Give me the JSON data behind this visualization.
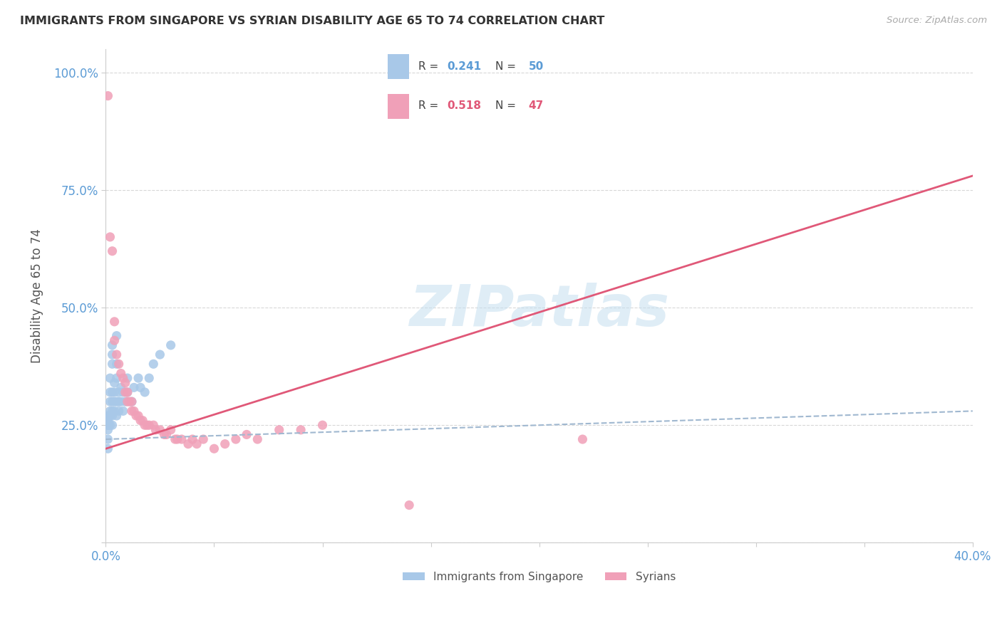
{
  "title": "IMMIGRANTS FROM SINGAPORE VS SYRIAN DISABILITY AGE 65 TO 74 CORRELATION CHART",
  "source": "Source: ZipAtlas.com",
  "ylabel": "Disability Age 65 to 74",
  "xlim": [
    0.0,
    0.4
  ],
  "ylim": [
    0.0,
    1.05
  ],
  "yticks": [
    0.0,
    0.25,
    0.5,
    0.75,
    1.0
  ],
  "ytick_labels": [
    "",
    "25.0%",
    "50.0%",
    "75.0%",
    "100.0%"
  ],
  "xticks": [
    0.0,
    0.05,
    0.1,
    0.15,
    0.2,
    0.25,
    0.3,
    0.35,
    0.4
  ],
  "xtick_labels": [
    "0.0%",
    "",
    "",
    "",
    "",
    "",
    "",
    "",
    "40.0%"
  ],
  "watermark": "ZIPatlas",
  "singapore_color": "#a8c8e8",
  "syrian_color": "#f0a0b8",
  "background_color": "#ffffff",
  "grid_color": "#d8d8d8",
  "axis_color": "#cccccc",
  "title_color": "#333333",
  "source_color": "#aaaaaa",
  "label_color": "#555555",
  "tick_color": "#5b9bd5",
  "legend_r_color_sg": "#5b9bd5",
  "legend_r_color_sy": "#e05878",
  "singapore_line_color": "#a0b8d0",
  "syrian_line_color": "#e05878",
  "sg_R": "0.241",
  "sg_N": "50",
  "sy_R": "0.518",
  "sy_N": "47",
  "singapore_scatter": [
    [
      0.001,
      0.2
    ],
    [
      0.001,
      0.22
    ],
    [
      0.001,
      0.24
    ],
    [
      0.001,
      0.25
    ],
    [
      0.001,
      0.25
    ],
    [
      0.001,
      0.26
    ],
    [
      0.001,
      0.26
    ],
    [
      0.001,
      0.27
    ],
    [
      0.002,
      0.25
    ],
    [
      0.002,
      0.27
    ],
    [
      0.002,
      0.28
    ],
    [
      0.002,
      0.3
    ],
    [
      0.002,
      0.32
    ],
    [
      0.002,
      0.35
    ],
    [
      0.003,
      0.25
    ],
    [
      0.003,
      0.27
    ],
    [
      0.003,
      0.28
    ],
    [
      0.003,
      0.3
    ],
    [
      0.003,
      0.32
    ],
    [
      0.003,
      0.38
    ],
    [
      0.003,
      0.4
    ],
    [
      0.003,
      0.42
    ],
    [
      0.004,
      0.28
    ],
    [
      0.004,
      0.3
    ],
    [
      0.004,
      0.32
    ],
    [
      0.004,
      0.34
    ],
    [
      0.005,
      0.27
    ],
    [
      0.005,
      0.3
    ],
    [
      0.005,
      0.35
    ],
    [
      0.005,
      0.38
    ],
    [
      0.005,
      0.44
    ],
    [
      0.006,
      0.28
    ],
    [
      0.006,
      0.3
    ],
    [
      0.006,
      0.32
    ],
    [
      0.007,
      0.3
    ],
    [
      0.007,
      0.33
    ],
    [
      0.008,
      0.28
    ],
    [
      0.008,
      0.32
    ],
    [
      0.009,
      0.3
    ],
    [
      0.01,
      0.32
    ],
    [
      0.01,
      0.35
    ],
    [
      0.012,
      0.3
    ],
    [
      0.013,
      0.33
    ],
    [
      0.015,
      0.35
    ],
    [
      0.016,
      0.33
    ],
    [
      0.018,
      0.32
    ],
    [
      0.02,
      0.35
    ],
    [
      0.022,
      0.38
    ],
    [
      0.025,
      0.4
    ],
    [
      0.03,
      0.42
    ]
  ],
  "syrian_scatter": [
    [
      0.001,
      0.95
    ],
    [
      0.002,
      0.65
    ],
    [
      0.003,
      0.62
    ],
    [
      0.004,
      0.47
    ],
    [
      0.004,
      0.43
    ],
    [
      0.005,
      0.4
    ],
    [
      0.006,
      0.38
    ],
    [
      0.007,
      0.36
    ],
    [
      0.008,
      0.35
    ],
    [
      0.009,
      0.34
    ],
    [
      0.009,
      0.32
    ],
    [
      0.01,
      0.32
    ],
    [
      0.01,
      0.3
    ],
    [
      0.011,
      0.3
    ],
    [
      0.012,
      0.3
    ],
    [
      0.012,
      0.28
    ],
    [
      0.013,
      0.28
    ],
    [
      0.014,
      0.27
    ],
    [
      0.015,
      0.27
    ],
    [
      0.016,
      0.26
    ],
    [
      0.017,
      0.26
    ],
    [
      0.018,
      0.25
    ],
    [
      0.019,
      0.25
    ],
    [
      0.02,
      0.25
    ],
    [
      0.022,
      0.25
    ],
    [
      0.023,
      0.24
    ],
    [
      0.025,
      0.24
    ],
    [
      0.027,
      0.23
    ],
    [
      0.028,
      0.23
    ],
    [
      0.03,
      0.24
    ],
    [
      0.032,
      0.22
    ],
    [
      0.033,
      0.22
    ],
    [
      0.035,
      0.22
    ],
    [
      0.038,
      0.21
    ],
    [
      0.04,
      0.22
    ],
    [
      0.042,
      0.21
    ],
    [
      0.045,
      0.22
    ],
    [
      0.05,
      0.2
    ],
    [
      0.055,
      0.21
    ],
    [
      0.06,
      0.22
    ],
    [
      0.065,
      0.23
    ],
    [
      0.07,
      0.22
    ],
    [
      0.08,
      0.24
    ],
    [
      0.09,
      0.24
    ],
    [
      0.1,
      0.25
    ],
    [
      0.14,
      0.08
    ],
    [
      0.22,
      0.22
    ]
  ]
}
